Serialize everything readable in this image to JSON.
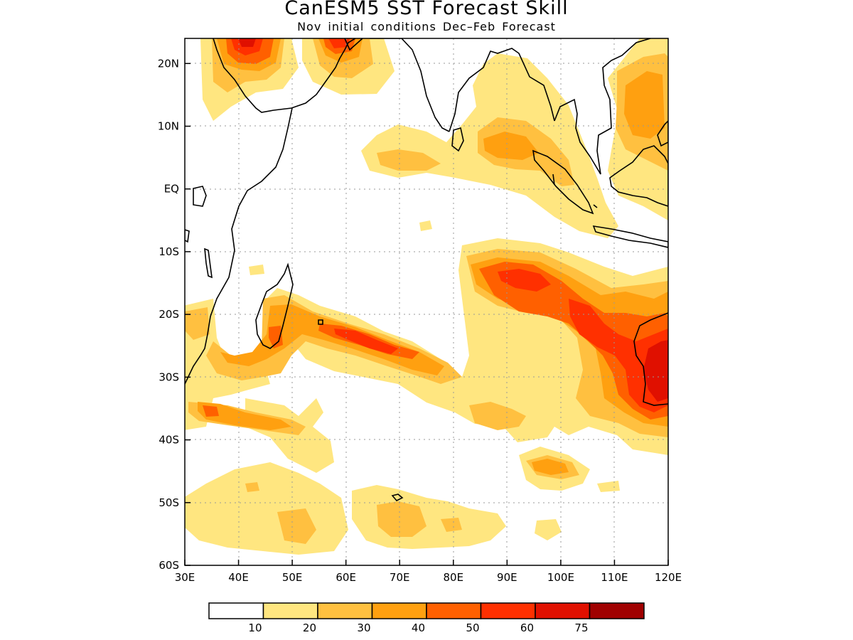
{
  "title": "CanESM5 SST Forecast Skill",
  "subtitle": "Nov initial conditions  Dec–Feb Forecast",
  "map": {
    "lon_range": [
      30,
      120
    ],
    "lat_range": [
      -60,
      24
    ],
    "grid": "dotted",
    "lon_ticks": [
      "30E",
      "40E",
      "50E",
      "60E",
      "70E",
      "80E",
      "90E",
      "100E",
      "110E",
      "120E"
    ],
    "lat_ticks": [
      "20N",
      "10N",
      "EQ",
      "10S",
      "20S",
      "30S",
      "40S",
      "50S",
      "60S"
    ]
  },
  "colorbar": {
    "levels": [
      "10",
      "20",
      "30",
      "40",
      "50",
      "60",
      "75"
    ],
    "colors": [
      "#ffffff",
      "#ffe680",
      "#ffc040",
      "#ffa010",
      "#ff6000",
      "#ff3000",
      "#e01000",
      "#a00000"
    ]
  }
}
